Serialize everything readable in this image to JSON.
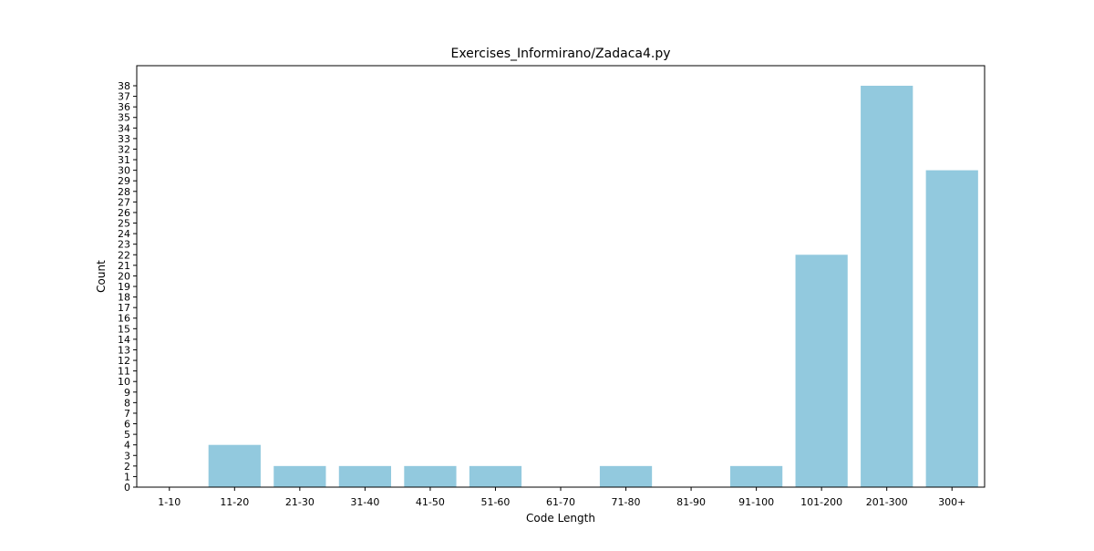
{
  "chart_data": {
    "type": "bar",
    "title": "Exercises_Informirano/Zadaca4.py",
    "xlabel": "Code Length",
    "ylabel": "Count",
    "categories": [
      "1-10",
      "11-20",
      "21-30",
      "31-40",
      "41-50",
      "51-60",
      "61-70",
      "71-80",
      "81-90",
      "91-100",
      "101-200",
      "201-300",
      "300+"
    ],
    "values": [
      0,
      4,
      2,
      2,
      2,
      2,
      0,
      2,
      0,
      2,
      22,
      38,
      30
    ],
    "ylim": [
      0,
      39.9
    ],
    "yticks": [
      0,
      1,
      2,
      3,
      4,
      5,
      6,
      7,
      8,
      9,
      10,
      11,
      12,
      13,
      14,
      15,
      16,
      17,
      18,
      19,
      20,
      21,
      22,
      23,
      24,
      25,
      26,
      27,
      28,
      29,
      30,
      31,
      32,
      33,
      34,
      35,
      36,
      37,
      38
    ],
    "bar_color": "#92c9de",
    "grid": false,
    "legend": "none"
  }
}
